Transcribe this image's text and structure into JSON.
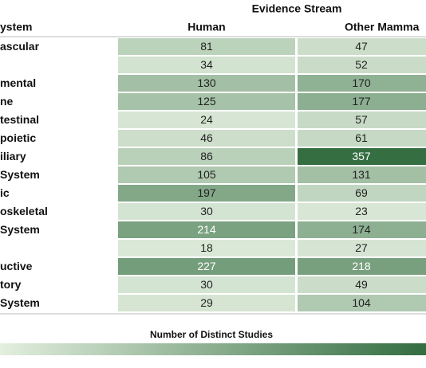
{
  "chart_data": {
    "type": "heatmap",
    "title": "Evidence Stream",
    "row_header": "ystem",
    "columns": [
      "Human",
      "Other Mamma"
    ],
    "rows": [
      "ascular",
      null,
      "mental",
      "ne",
      "testinal",
      "poietic",
      "iliary",
      "System",
      "ic",
      "oskeletal",
      "System",
      null,
      "uctive",
      "tory",
      "System"
    ],
    "values": [
      [
        81,
        47
      ],
      [
        34,
        52
      ],
      [
        130,
        170
      ],
      [
        125,
        177
      ],
      [
        24,
        57
      ],
      [
        46,
        61
      ],
      [
        86,
        357
      ],
      [
        105,
        131
      ],
      [
        197,
        69
      ],
      [
        30,
        23
      ],
      [
        214,
        174
      ],
      [
        18,
        27
      ],
      [
        227,
        218
      ],
      [
        30,
        49
      ],
      [
        29,
        104
      ]
    ],
    "colorbar_label": "Number of Distinct Studies",
    "clim": [
      0,
      360
    ],
    "colors": [
      "#e3efdf",
      "#336d40"
    ]
  }
}
